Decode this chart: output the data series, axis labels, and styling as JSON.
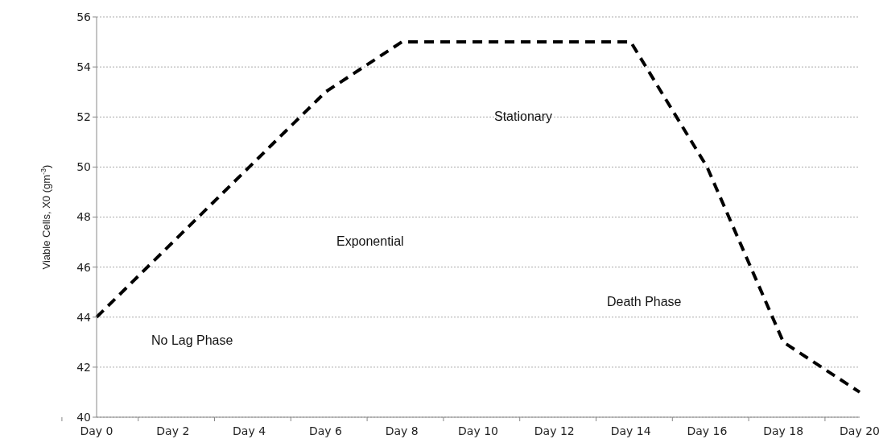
{
  "chart_data": {
    "type": "line",
    "ylabel": "Viable Cells, X0 (gm$^{-3}$)",
    "categories": [
      "Day 0",
      "Day 2",
      "Day 4",
      "Day 6",
      "Day 8",
      "Day 10",
      "Day 12",
      "Day 14",
      "Day 16",
      "Day 18",
      "Day 20"
    ],
    "series": [
      {
        "color": "#000000",
        "values": [
          44,
          47,
          50,
          53,
          55,
          55,
          55,
          55,
          50,
          43,
          41
        ]
      }
    ],
    "ylim": [
      40,
      56
    ],
    "yticks": [
      40,
      42,
      44,
      46,
      48,
      50,
      52,
      54,
      56
    ],
    "grid": "y",
    "legend": false,
    "marker": "none",
    "line_style": "dashed",
    "annotations": [
      "No Lag Phase",
      "Exponential",
      "Stationary",
      "Death Phase"
    ]
  }
}
